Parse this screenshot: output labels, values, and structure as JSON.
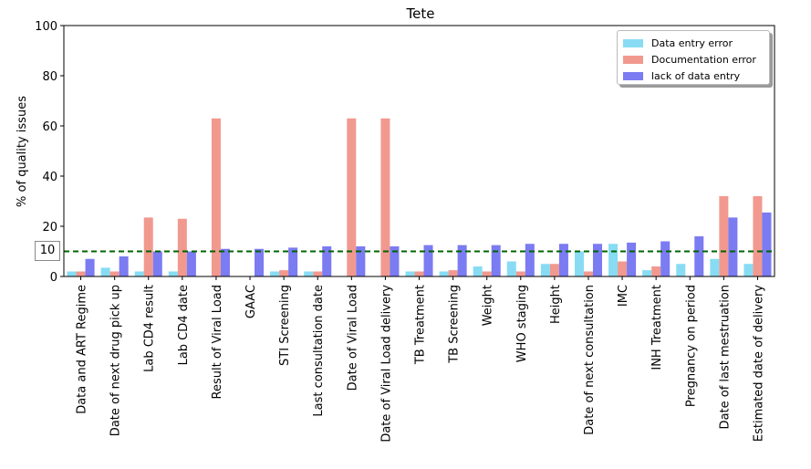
{
  "chart_data": {
    "type": "bar",
    "title": "Tete",
    "xlabel": "",
    "ylabel": "% of quality issues",
    "ylim": [
      0,
      100
    ],
    "yticks": [
      0,
      20,
      40,
      60,
      80,
      100
    ],
    "grid": false,
    "legend_position": "top-right",
    "reference_line": {
      "value": 10,
      "label": "10",
      "color": "#006400",
      "style": "dashed"
    },
    "categories": [
      "Data and ART Regime",
      "Date of next drug pick up",
      "Lab CD4 result",
      "Lab CD4 date",
      "Result of Viral Load",
      "GAAC",
      "STI Screening",
      "Last consultation date",
      "Date of Viral Load",
      "Date of Viral Load delivery",
      "TB Treatment",
      "TB Screening",
      "Weight",
      "WHO staging",
      "Height",
      "Date of next consultation",
      "IMC",
      "INH Treatment",
      "Pregnancy on period",
      "Date of last mestruation",
      "Estimated date of delivery"
    ],
    "series": [
      {
        "name": "Data entry error",
        "color": "#87dcf3",
        "values": [
          2,
          3.5,
          2,
          2,
          0,
          0,
          2,
          2,
          0,
          0,
          2,
          2,
          4,
          6,
          5,
          10,
          13,
          2.5,
          5,
          7,
          5
        ]
      },
      {
        "name": "Documentation error",
        "color": "#f1998f",
        "values": [
          2,
          2,
          23.5,
          23,
          63,
          0,
          2.5,
          2,
          63,
          63,
          2,
          2.5,
          2,
          2,
          5,
          2,
          6,
          4,
          0,
          32,
          32
        ]
      },
      {
        "name": "lack of data entry",
        "color": "#7b7bf2",
        "values": [
          7,
          8,
          10,
          10,
          11,
          11,
          11.5,
          12,
          12,
          12,
          12.5,
          12.5,
          12.5,
          13,
          13,
          13,
          13.5,
          14,
          16,
          23.5,
          25.5
        ]
      }
    ]
  }
}
